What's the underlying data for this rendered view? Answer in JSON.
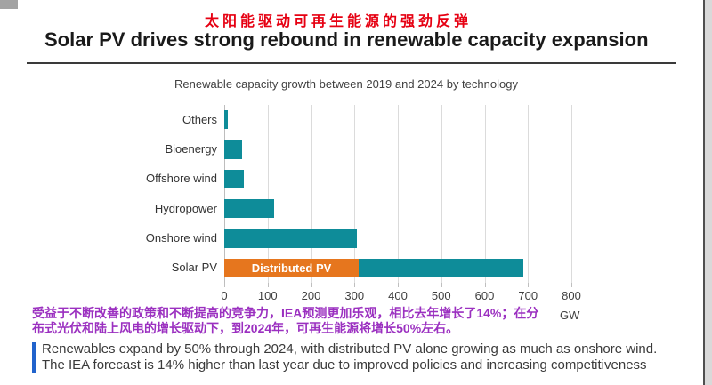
{
  "header": {
    "subtitle_cn": "太阳能驱动可再生能源的强劲反弹",
    "title": "Solar PV drives strong rebound in renewable capacity expansion"
  },
  "chart_data": {
    "type": "bar",
    "orientation": "horizontal",
    "title": "Renewable capacity growth between 2019 and 2024 by technology",
    "categories": [
      "Others",
      "Bioenergy",
      "Offshore wind",
      "Hydropower",
      "Onshore wind",
      "Solar PV"
    ],
    "values": [
      8,
      40,
      45,
      115,
      305,
      690
    ],
    "segments": {
      "category": "Solar PV",
      "label": "Distributed PV",
      "value": 310
    },
    "x_ticks": [
      0,
      100,
      200,
      300,
      400,
      500,
      600,
      700,
      800
    ],
    "xlim": [
      0,
      800
    ],
    "x_unit": "GW",
    "grid": true,
    "legend": "none",
    "bar_color": "#0e8c99",
    "segment_color": "#e6761e"
  },
  "annotation_cn": {
    "line1": "受益于不断改善的政策和不断提高的竞争力，IEA预测更加乐观，相比去年增长了14%；在分",
    "line2": "布式光伏和陆上风电的增长驱动下，到2024年，可再生能源将增长50%左右。"
  },
  "footer": {
    "line1": "Renewables expand by 50% through 2024, with distributed PV alone growing as much as onshore wind.",
    "line2": "The IEA forecast is 14% higher than last year due to improved policies and increasing competitiveness"
  },
  "colors": {
    "accent_red": "#e60012",
    "bar_teal": "#0e8c99",
    "bar_orange": "#e6761e",
    "note_purple": "#9b30c0",
    "footer_accent_blue": "#2163cc"
  }
}
